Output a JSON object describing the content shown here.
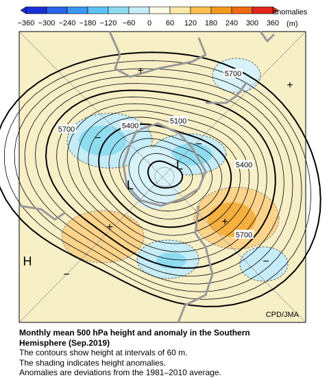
{
  "colorbar": {
    "ticks": [
      "−360",
      "−300",
      "−240",
      "−180",
      "−120",
      "−60",
      "0",
      "60",
      "120",
      "180",
      "240",
      "300",
      "360"
    ],
    "title": "anomalies",
    "unit": "(m)"
  },
  "map": {
    "contour_labels": [
      "5700",
      "5400",
      "5100",
      "5700",
      "5400",
      "5700"
    ],
    "lows": [
      "L",
      "L"
    ],
    "highs": [
      "H"
    ],
    "positive_signs": [
      "+",
      "+",
      "+",
      "+"
    ],
    "negative_signs": [
      "−",
      "−",
      "−",
      "−"
    ],
    "credit": "CPD/JMA"
  },
  "caption": {
    "title": "Monthly mean 500 hPa height and anomaly in the Southern Hemisphere (Sep.2019)",
    "lines": [
      "The contours show height at intervals of 60 m.",
      "The shading indicates height anomalies.",
      "Anomalies are deviations from the 1981–2010 average."
    ]
  }
}
